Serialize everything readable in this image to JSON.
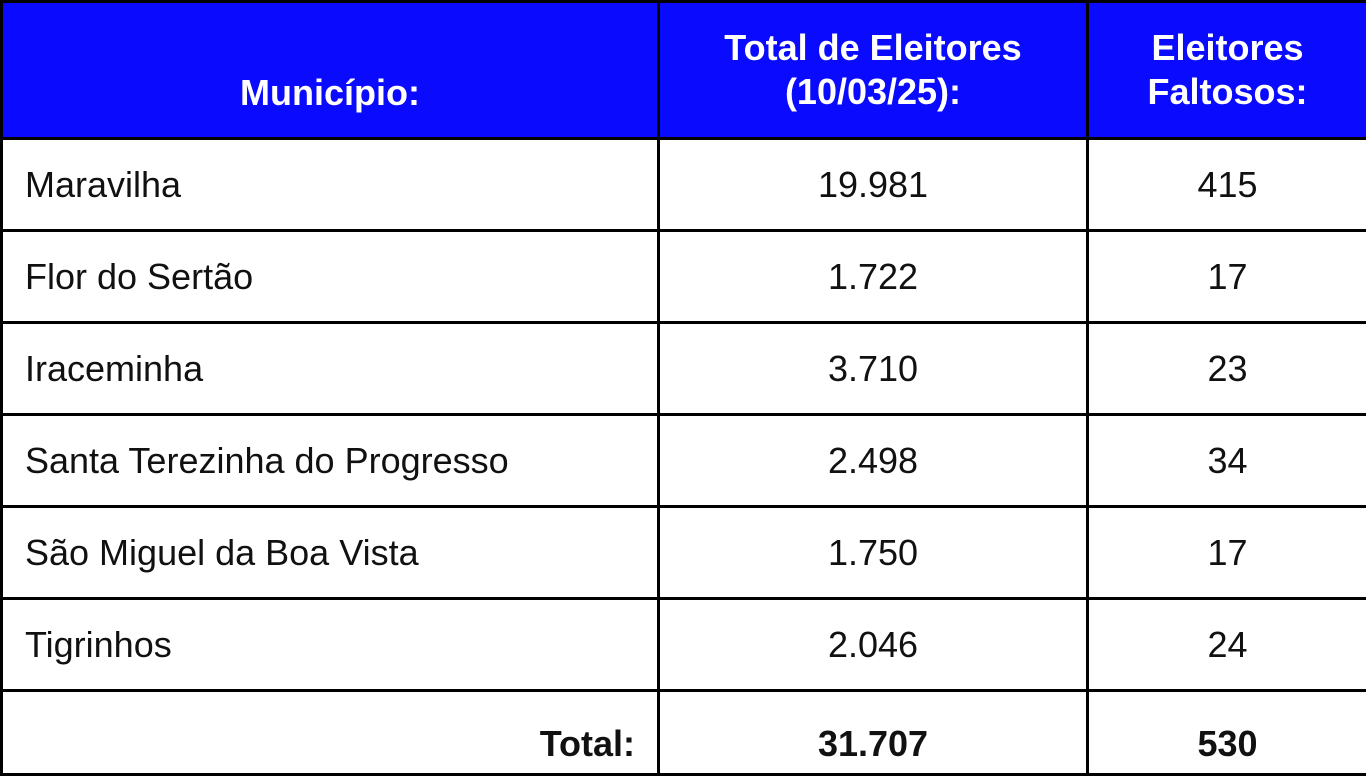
{
  "table": {
    "header": [
      [
        "Município:"
      ],
      [
        "Total de Eleitores",
        "(10/03/25):"
      ],
      [
        "Eleitores",
        "Faltosos:"
      ]
    ],
    "rows": [
      [
        "Maravilha",
        "19.981",
        "415"
      ],
      [
        "Flor do Sertão",
        "1.722",
        "17"
      ],
      [
        "Iraceminha",
        "3.710",
        "23"
      ],
      [
        "Santa Terezinha do Progresso",
        "2.498",
        "34"
      ],
      [
        "São Miguel da Boa Vista",
        "1.750",
        "17"
      ],
      [
        "Tigrinhos",
        "2.046",
        "24"
      ]
    ],
    "total": [
      "Total:",
      "31.707",
      "530"
    ]
  }
}
